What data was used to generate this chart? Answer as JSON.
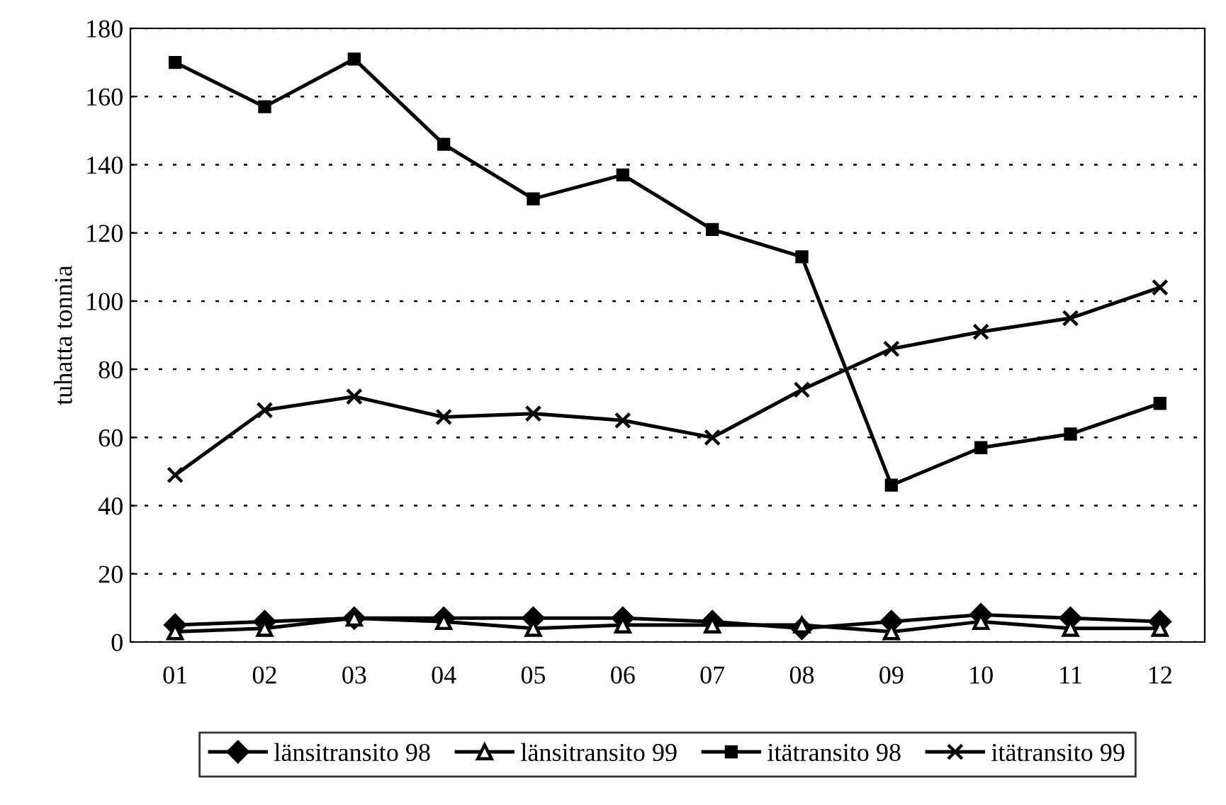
{
  "chart_data": {
    "type": "line",
    "ylabel": "tuhatta tonnia",
    "categories": [
      "01",
      "02",
      "03",
      "04",
      "05",
      "06",
      "07",
      "08",
      "09",
      "10",
      "11",
      "12"
    ],
    "series": [
      {
        "name": "länsitransito 98",
        "color": "#000000",
        "marker": "diamond",
        "values": [
          5,
          6,
          7,
          7,
          7,
          7,
          6,
          4,
          6,
          8,
          7,
          6
        ]
      },
      {
        "name": "länsitransito 99",
        "color": "#000000",
        "marker": "triangle",
        "values": [
          3,
          4,
          7,
          6,
          4,
          5,
          5,
          5,
          3,
          6,
          4,
          4
        ]
      },
      {
        "name": "itätransito 98",
        "color": "#000000",
        "marker": "square",
        "values": [
          170,
          157,
          171,
          146,
          130,
          137,
          121,
          113,
          46,
          57,
          61,
          70
        ]
      },
      {
        "name": "itätransito 99",
        "color": "#000000",
        "marker": "cross",
        "values": [
          49,
          68,
          72,
          66,
          67,
          65,
          60,
          74,
          86,
          91,
          95,
          104
        ]
      }
    ],
    "ylim": [
      0,
      180
    ],
    "yticks": [
      0,
      20,
      40,
      60,
      80,
      100,
      120,
      140,
      160,
      180
    ],
    "grid": "y",
    "legend": "bottom",
    "line_style": "solid"
  }
}
